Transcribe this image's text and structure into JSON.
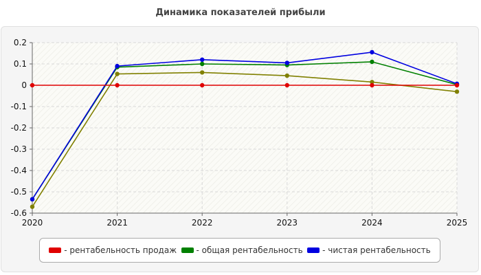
{
  "title": "Динамика показателей прибыли",
  "chart_data": {
    "type": "line",
    "title": "Динамика показателей прибыли",
    "xlabel": "",
    "ylabel": "",
    "x": [
      "2020",
      "2021",
      "2022",
      "2023",
      "2024",
      "2025"
    ],
    "ylim": [
      -0.6,
      0.2
    ],
    "yticks": [
      "0.2",
      "0.1",
      "0",
      "-0.1",
      "-0.2",
      "-0.3",
      "-0.4",
      "-0.5",
      "-0.6"
    ],
    "grid": true,
    "legend_position": "bottom",
    "series": [
      {
        "name": "- рентабельность продаж",
        "color": "#e00000",
        "values": [
          0,
          0,
          0,
          0,
          0,
          0
        ]
      },
      {
        "name": "- общая рентабельность",
        "color": "#008000",
        "values": [
          -0.535,
          0.085,
          0.1,
          0.095,
          0.11,
          0.003
        ]
      },
      {
        "name": "- чистая рентабельность",
        "color": "#0000e0",
        "values": [
          -0.535,
          0.09,
          0.12,
          0.105,
          0.155,
          0.007
        ]
      },
      {
        "name": "",
        "color": "#808000",
        "values": [
          -0.57,
          0.053,
          0.06,
          0.045,
          0.015,
          -0.03
        ]
      }
    ]
  }
}
